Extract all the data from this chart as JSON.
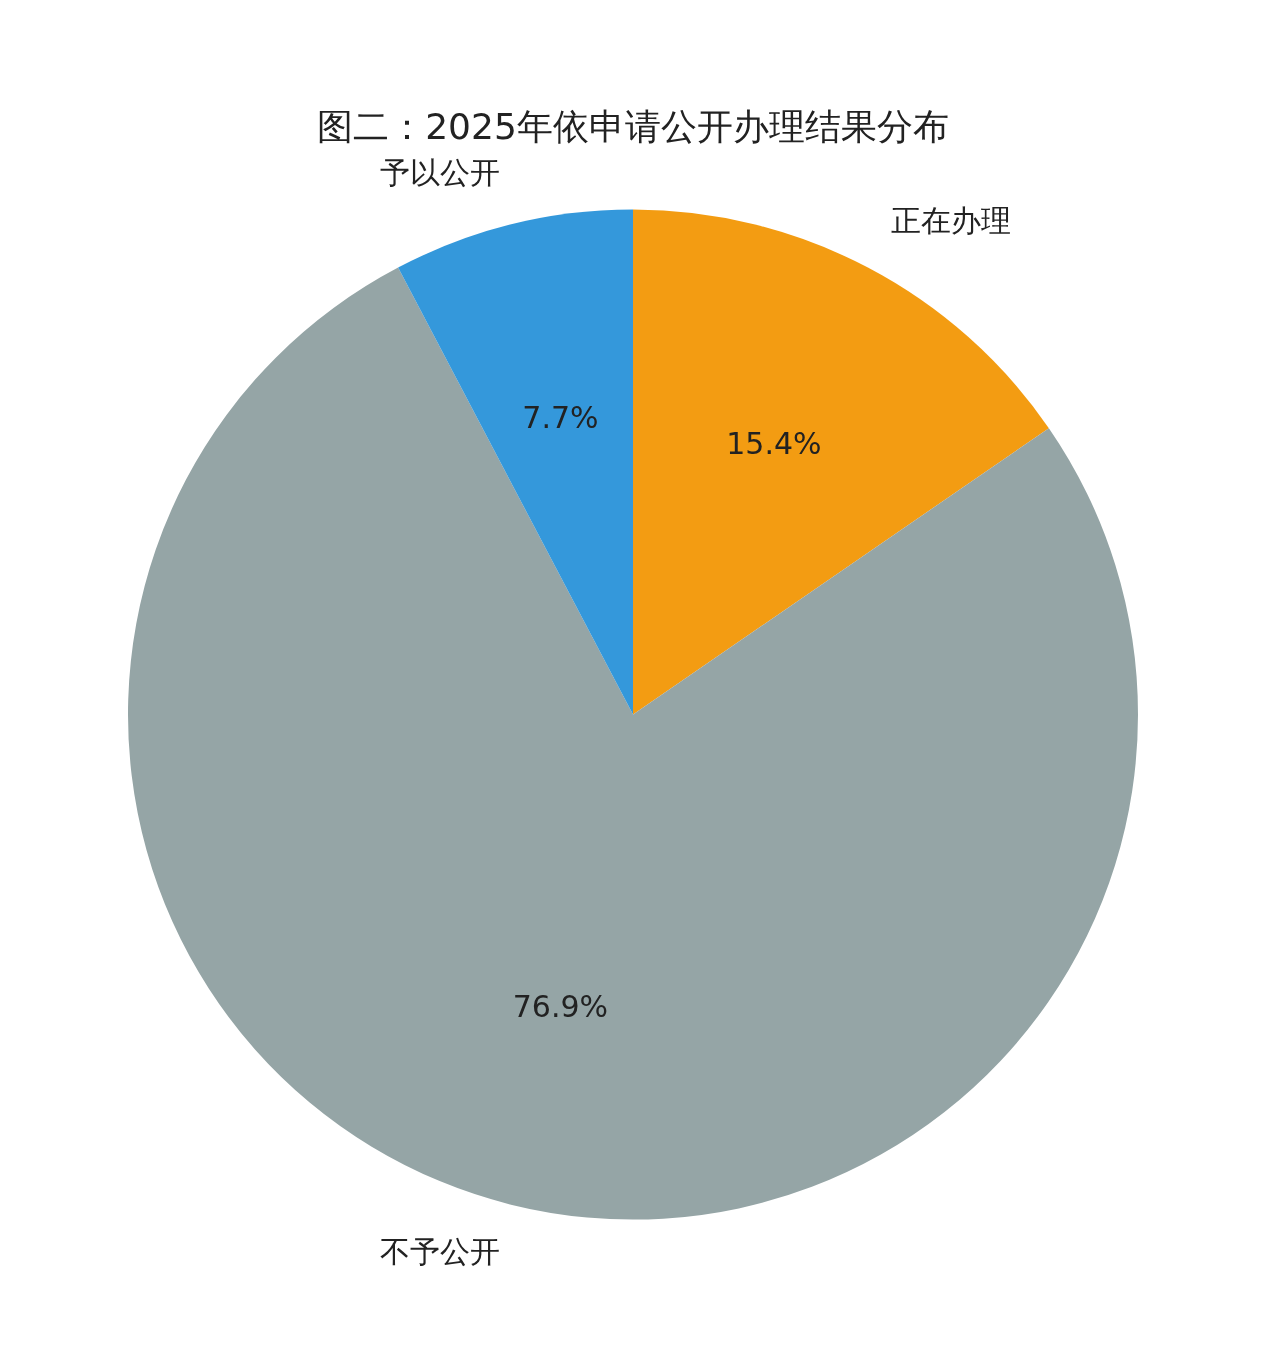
{
  "chart_data": {
    "type": "pie",
    "title": "图二：2025年依申请公开办理结果分布",
    "categories": [
      "正在办理",
      "不予公开",
      "予以公开"
    ],
    "values": [
      15.4,
      76.9,
      7.7
    ],
    "value_labels": [
      "15.4%",
      "76.9%",
      "7.7%"
    ],
    "colors": [
      "#f39c12",
      "#95a5a6",
      "#3498db"
    ],
    "legend": false
  }
}
